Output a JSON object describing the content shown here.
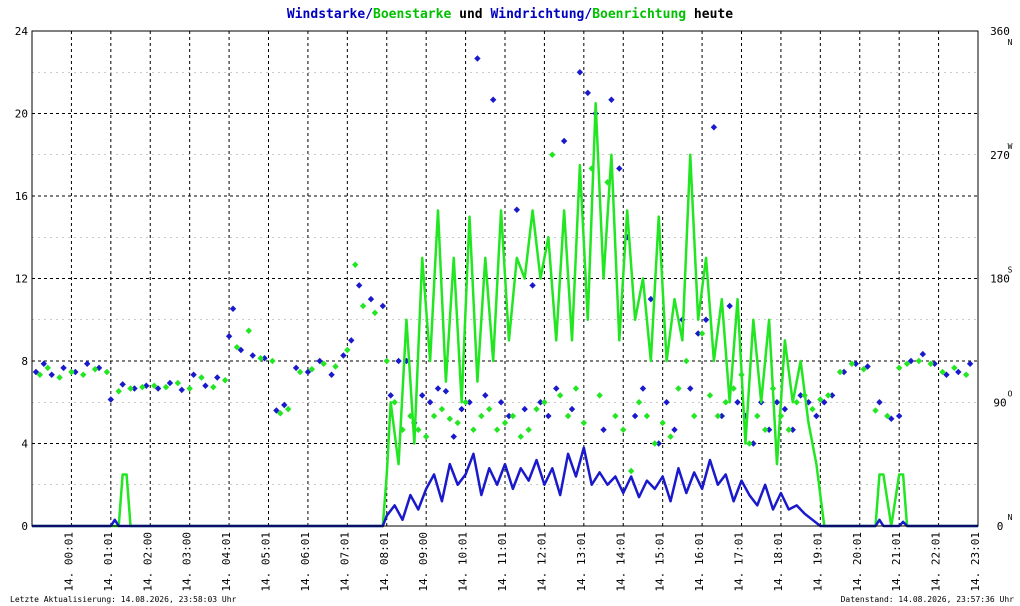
{
  "chart_data": {
    "type": "line",
    "title_parts": [
      {
        "text": "Windstarke",
        "color": "#0000c0"
      },
      {
        "text": "/",
        "color": "#0000c0"
      },
      {
        "text": "Boenstarke",
        "color": "#00c000"
      },
      {
        "text": " und ",
        "color": "#000000"
      },
      {
        "text": "Windrichtung",
        "color": "#0000c0"
      },
      {
        "text": "/",
        "color": "#0000c0"
      },
      {
        "text": "Boenrichtung",
        "color": "#00c000"
      },
      {
        "text": " heute",
        "color": "#000000"
      }
    ],
    "colors": {
      "wind": "#1a1acc",
      "gust": "#22e622",
      "grid": "#000000"
    },
    "ylim": [
      0,
      24
    ],
    "y_ticks": [
      "0",
      "4",
      "8",
      "12",
      "16",
      "20",
      "24"
    ],
    "y2_ticks": [
      "0",
      "90",
      "180",
      "270",
      "360"
    ],
    "y2_dir_labels": [
      "N",
      "O",
      "S",
      "W",
      "N"
    ],
    "xlim": [
      0,
      24
    ],
    "x_tick_labels": [
      "14. 00:01",
      "14. 01:01",
      "14. 02:00",
      "14. 03:00",
      "14. 04:01",
      "14. 05:01",
      "14. 06:01",
      "14. 07:01",
      "14. 08:01",
      "14. 09:00",
      "14. 10:01",
      "14. 11:01",
      "14. 12:01",
      "14. 13:01",
      "14. 14:01",
      "14. 15:01",
      "14. 16:01",
      "14. 17:01",
      "14. 18:01",
      "14. 19:01",
      "14. 20:01",
      "14. 21:01",
      "14. 22:01",
      "14. 23:01"
    ],
    "footer_left": "Letzte Aktualisierung: 14.08.2026, 23:58:03 Uhr",
    "footer_right": "Datenstand: 14.08.2026, 23:57:36 Uhr",
    "series": [
      {
        "name": "Windstarke",
        "kind": "line",
        "color": "#1a1acc",
        "x": [
          0,
          2,
          2.1,
          2.2,
          8.9,
          9.0,
          9.2,
          9.4,
          9.6,
          9.8,
          10.0,
          10.2,
          10.4,
          10.6,
          10.8,
          11.0,
          11.2,
          11.4,
          11.6,
          11.8,
          12.0,
          12.2,
          12.4,
          12.6,
          12.8,
          13.0,
          13.2,
          13.4,
          13.6,
          13.8,
          14.0,
          14.2,
          14.4,
          14.6,
          14.8,
          15.0,
          15.2,
          15.4,
          15.6,
          15.8,
          16.0,
          16.2,
          16.4,
          16.6,
          16.8,
          17.0,
          17.2,
          17.4,
          17.6,
          17.8,
          18.0,
          18.2,
          18.4,
          18.6,
          18.8,
          19.0,
          19.2,
          19.4,
          19.6,
          19.8,
          20.0,
          21.4,
          21.5,
          21.6,
          22.0,
          22.1,
          22.2,
          24
        ],
        "y": [
          0,
          0,
          0.3,
          0,
          0,
          0.5,
          1.0,
          0.3,
          1.5,
          0.8,
          1.8,
          2.5,
          1.2,
          3.0,
          2.0,
          2.5,
          3.5,
          1.5,
          2.8,
          2.0,
          3.0,
          1.8,
          2.8,
          2.2,
          3.2,
          2.0,
          2.8,
          1.5,
          3.5,
          2.4,
          3.8,
          2.0,
          2.6,
          2.0,
          2.4,
          1.6,
          2.4,
          1.4,
          2.2,
          1.8,
          2.4,
          1.2,
          2.8,
          1.6,
          2.6,
          1.8,
          3.2,
          2.0,
          2.5,
          1.2,
          2.2,
          1.5,
          1.0,
          2.0,
          0.8,
          1.6,
          0.8,
          1.0,
          0.6,
          0.3,
          0,
          0,
          0.3,
          0,
          0,
          0.2,
          0,
          0
        ]
      },
      {
        "name": "Boenstarke",
        "kind": "line",
        "color": "#22e622",
        "x": [
          0,
          2.2,
          2.3,
          2.4,
          2.5,
          2.6,
          8.9,
          9.0,
          9.1,
          9.3,
          9.5,
          9.7,
          9.9,
          10.1,
          10.3,
          10.5,
          10.7,
          10.9,
          11.1,
          11.3,
          11.5,
          11.7,
          11.9,
          12.1,
          12.3,
          12.5,
          12.7,
          12.9,
          13.1,
          13.3,
          13.5,
          13.7,
          13.9,
          14.1,
          14.3,
          14.5,
          14.7,
          14.9,
          15.1,
          15.3,
          15.5,
          15.7,
          15.9,
          16.1,
          16.3,
          16.5,
          16.7,
          16.9,
          17.1,
          17.3,
          17.5,
          17.7,
          17.9,
          18.1,
          18.3,
          18.5,
          18.7,
          18.9,
          19.1,
          19.3,
          19.5,
          19.7,
          19.9,
          20.1,
          20.3,
          21.4,
          21.5,
          21.6,
          21.8,
          22.0,
          22.1,
          22.2,
          24
        ],
        "y": [
          0,
          0,
          2.5,
          2.5,
          0,
          0,
          0,
          2.5,
          6.0,
          3.0,
          10.0,
          4.0,
          13.0,
          8.0,
          15.3,
          7.0,
          13.0,
          6.0,
          15.0,
          7.0,
          13.0,
          8.0,
          15.3,
          9.0,
          13.0,
          12.0,
          15.3,
          12.0,
          14.0,
          9.0,
          15.3,
          9.0,
          17.5,
          10.0,
          20.5,
          12.0,
          18.0,
          9.0,
          15.3,
          10.0,
          12.0,
          8.0,
          15.0,
          8.0,
          11.0,
          9.0,
          18.0,
          10.0,
          13.0,
          8.0,
          11.0,
          6.0,
          11.0,
          4.0,
          10.0,
          6.0,
          10.0,
          3.0,
          9.0,
          6.0,
          8.0,
          5.0,
          3.0,
          0,
          0,
          0,
          2.5,
          2.5,
          0,
          2.5,
          2.5,
          0,
          0
        ]
      },
      {
        "name": "Windrichtung",
        "kind": "scatter",
        "color": "#1a1acc",
        "x": [
          0.1,
          0.3,
          0.5,
          0.8,
          1.1,
          1.4,
          1.7,
          2.0,
          2.3,
          2.6,
          2.9,
          3.2,
          3.5,
          3.8,
          4.1,
          4.4,
          4.7,
          5.0,
          5.1,
          5.3,
          5.6,
          5.9,
          6.2,
          6.4,
          6.7,
          7.0,
          7.3,
          7.6,
          7.9,
          8.1,
          8.3,
          8.6,
          8.9,
          9.1,
          9.3,
          9.5,
          9.7,
          9.9,
          10.1,
          10.3,
          10.5,
          10.7,
          10.9,
          11.1,
          11.3,
          11.5,
          11.7,
          11.9,
          12.1,
          12.3,
          12.5,
          12.7,
          12.9,
          13.1,
          13.3,
          13.5,
          13.7,
          13.9,
          14.1,
          14.3,
          14.5,
          14.7,
          14.9,
          15.1,
          15.3,
          15.5,
          15.7,
          15.9,
          16.1,
          16.3,
          16.5,
          16.7,
          16.9,
          17.1,
          17.3,
          17.5,
          17.7,
          17.9,
          18.1,
          18.3,
          18.5,
          18.7,
          18.9,
          19.1,
          19.3,
          19.5,
          19.7,
          19.9,
          20.1,
          20.3,
          20.6,
          20.9,
          21.2,
          21.5,
          21.8,
          22.0,
          22.3,
          22.6,
          22.9,
          23.2,
          23.5,
          23.8
        ],
        "y": [
          112,
          118,
          110,
          115,
          112,
          118,
          115,
          92,
          103,
          100,
          102,
          100,
          104,
          99,
          110,
          102,
          108,
          138,
          158,
          128,
          124,
          122,
          84,
          88,
          115,
          112,
          120,
          110,
          124,
          135,
          175,
          165,
          160,
          95,
          120,
          120,
          75,
          95,
          90,
          100,
          98,
          65,
          85,
          90,
          340,
          95,
          310,
          90,
          80,
          230,
          85,
          175,
          90,
          80,
          100,
          280,
          85,
          330,
          315,
          300,
          70,
          310,
          260,
          210,
          80,
          100,
          165,
          60,
          90,
          70,
          150,
          100,
          140,
          150,
          290,
          80,
          160,
          90,
          80,
          60,
          90,
          70,
          90,
          85,
          70,
          95,
          90,
          80,
          90,
          95,
          112,
          118,
          116,
          90,
          78,
          80,
          120,
          125,
          118,
          110,
          112,
          118
        ]
      },
      {
        "name": "Boenrichtung",
        "kind": "scatter",
        "color": "#22e622",
        "x": [
          0.2,
          0.4,
          0.7,
          1.0,
          1.3,
          1.6,
          1.9,
          2.2,
          2.5,
          2.8,
          3.1,
          3.4,
          3.7,
          4.0,
          4.3,
          4.6,
          4.9,
          5.2,
          5.5,
          5.8,
          6.1,
          6.3,
          6.5,
          6.8,
          7.1,
          7.4,
          7.7,
          8.0,
          8.2,
          8.4,
          8.7,
          9.0,
          9.2,
          9.4,
          9.6,
          9.8,
          10.0,
          10.2,
          10.4,
          10.6,
          10.8,
          11.0,
          11.2,
          11.4,
          11.6,
          11.8,
          12.0,
          12.2,
          12.4,
          12.6,
          12.8,
          13.0,
          13.2,
          13.4,
          13.6,
          13.8,
          14.0,
          14.2,
          14.4,
          14.6,
          14.8,
          15.0,
          15.2,
          15.4,
          15.6,
          15.8,
          16.0,
          16.2,
          16.4,
          16.6,
          16.8,
          17.0,
          17.2,
          17.4,
          17.6,
          17.8,
          18.0,
          18.2,
          18.4,
          18.6,
          18.8,
          19.0,
          19.2,
          19.4,
          19.6,
          19.8,
          20.0,
          20.2,
          20.5,
          20.8,
          21.1,
          21.4,
          21.7,
          22.0,
          22.2,
          22.5,
          22.8,
          23.1,
          23.4,
          23.7
        ],
        "y": [
          110,
          115,
          108,
          112,
          110,
          114,
          112,
          98,
          100,
          101,
          102,
          101,
          104,
          100,
          108,
          101,
          106,
          130,
          142,
          122,
          120,
          82,
          85,
          112,
          114,
          118,
          116,
          128,
          190,
          160,
          155,
          120,
          90,
          70,
          80,
          70,
          65,
          80,
          85,
          78,
          75,
          90,
          70,
          80,
          85,
          70,
          75,
          80,
          65,
          70,
          85,
          90,
          270,
          95,
          80,
          100,
          75,
          260,
          95,
          250,
          80,
          70,
          40,
          90,
          80,
          60,
          75,
          65,
          100,
          120,
          80,
          140,
          95,
          80,
          90,
          100,
          110,
          60,
          80,
          70,
          100,
          80,
          70,
          90,
          95,
          85,
          92,
          95,
          112,
          118,
          114,
          84,
          80,
          115,
          118,
          120,
          118,
          112,
          115,
          110
        ]
      }
    ]
  }
}
